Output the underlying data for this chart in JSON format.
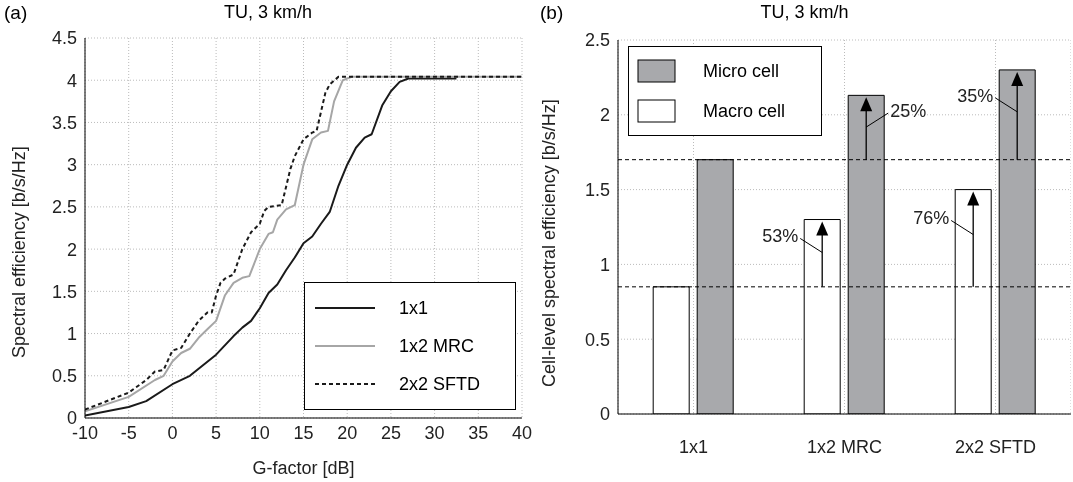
{
  "chart_data": [
    {
      "type": "line",
      "title": "TU, 3 km/h",
      "xlabel": "G-factor [dB]",
      "ylabel": "Spectral efficiency [b/s/Hz]",
      "annotations": [
        "(a)"
      ],
      "xlim": [
        -10,
        40
      ],
      "ylim": [
        0,
        4.5
      ],
      "xticks": [
        -10,
        -5,
        0,
        5,
        10,
        15,
        20,
        25,
        30,
        35,
        40
      ],
      "yticks": [
        0,
        0.5,
        1,
        1.5,
        2,
        2.5,
        3,
        3.5,
        4,
        4.5
      ],
      "grid": true,
      "legend": "bottom right",
      "series": [
        {
          "name": "1x1",
          "color": "#1a1a1a",
          "line_style": "solid",
          "x": [
            -10,
            -5,
            -3,
            0,
            2,
            5,
            7,
            8,
            9,
            10,
            11,
            12,
            13,
            14,
            15,
            16,
            17,
            18,
            19,
            20,
            21,
            22,
            22.8,
            24,
            25,
            26,
            27,
            32.5
          ],
          "values": [
            0.03,
            0.13,
            0.2,
            0.4,
            0.5,
            0.75,
            0.97,
            1.07,
            1.15,
            1.3,
            1.48,
            1.58,
            1.75,
            1.9,
            2.07,
            2.15,
            2.3,
            2.44,
            2.75,
            3.0,
            3.2,
            3.32,
            3.36,
            3.7,
            3.87,
            3.98,
            4.02,
            4.02
          ]
        },
        {
          "name": "1x2 MRC",
          "color": "#a6a6a6",
          "line_style": "solid",
          "x": [
            -10,
            -5,
            -2,
            -1,
            0,
            1,
            2,
            3,
            4,
            5,
            6,
            7,
            8,
            8.8,
            10,
            11,
            11.5,
            12,
            13,
            14,
            15,
            16,
            17,
            17.8,
            18.5,
            19.5,
            20.5,
            40
          ],
          "values": [
            0.08,
            0.25,
            0.45,
            0.5,
            0.67,
            0.77,
            0.82,
            0.95,
            1.05,
            1.15,
            1.45,
            1.6,
            1.66,
            1.68,
            2.0,
            2.18,
            2.2,
            2.35,
            2.47,
            2.52,
            3.0,
            3.3,
            3.38,
            3.4,
            3.75,
            4.0,
            4.04,
            4.04
          ]
        },
        {
          "name": "2x2 SFTD",
          "color": "#1a1a1a",
          "line_style": "dashed",
          "x": [
            -10,
            -5,
            -3,
            -2,
            -1,
            0,
            1,
            2,
            3,
            4,
            4.5,
            5,
            5.5,
            6,
            7,
            8,
            9,
            10,
            10.5,
            11,
            12.5,
            13.5,
            14,
            15,
            16,
            16.5,
            17.5,
            18,
            19,
            40
          ],
          "values": [
            0.1,
            0.3,
            0.45,
            0.55,
            0.57,
            0.8,
            0.83,
            1.0,
            1.15,
            1.25,
            1.25,
            1.45,
            1.6,
            1.65,
            1.7,
            2.0,
            2.2,
            2.3,
            2.45,
            2.5,
            2.52,
            2.95,
            3.1,
            3.3,
            3.38,
            3.4,
            3.85,
            3.95,
            4.04,
            4.04
          ]
        }
      ]
    },
    {
      "type": "bar",
      "title": "TU, 3 km/h",
      "ylabel": "Cell-level spectral efficiency [b/s/Hz]",
      "categories": [
        "1x1",
        "1x2 MRC",
        "2x2 SFTD"
      ],
      "ylim": [
        0,
        2.5
      ],
      "yticks": [
        0,
        0.5,
        1,
        1.5,
        2,
        2.5
      ],
      "grid": true,
      "legend": "top left",
      "series": [
        {
          "name": "Macro cell",
          "color": "#ffffff",
          "values": [
            0.85,
            1.3,
            1.5
          ]
        },
        {
          "name": "Micro cell",
          "color": "#a8a9ac",
          "values": [
            1.7,
            2.13,
            2.3
          ]
        }
      ],
      "ref_lines": [
        {
          "axis": "y",
          "value": 1.7,
          "color": "#000000",
          "line_style": "dashed"
        },
        {
          "axis": "y",
          "value": 0.85,
          "color": "#000000",
          "line_style": "dashed"
        }
      ],
      "annotations": [
        "(b)",
        {
          "text": "53%",
          "x": "1x2 MRC",
          "y": 1.3
        },
        {
          "text": "76%",
          "x": "2x2 SFTD",
          "y": 1.5
        },
        {
          "text": "25%",
          "x": "1x2 MRC",
          "y": 2.13
        },
        {
          "text": "35%",
          "x": "2x2 SFTD",
          "y": 2.3
        }
      ]
    }
  ]
}
